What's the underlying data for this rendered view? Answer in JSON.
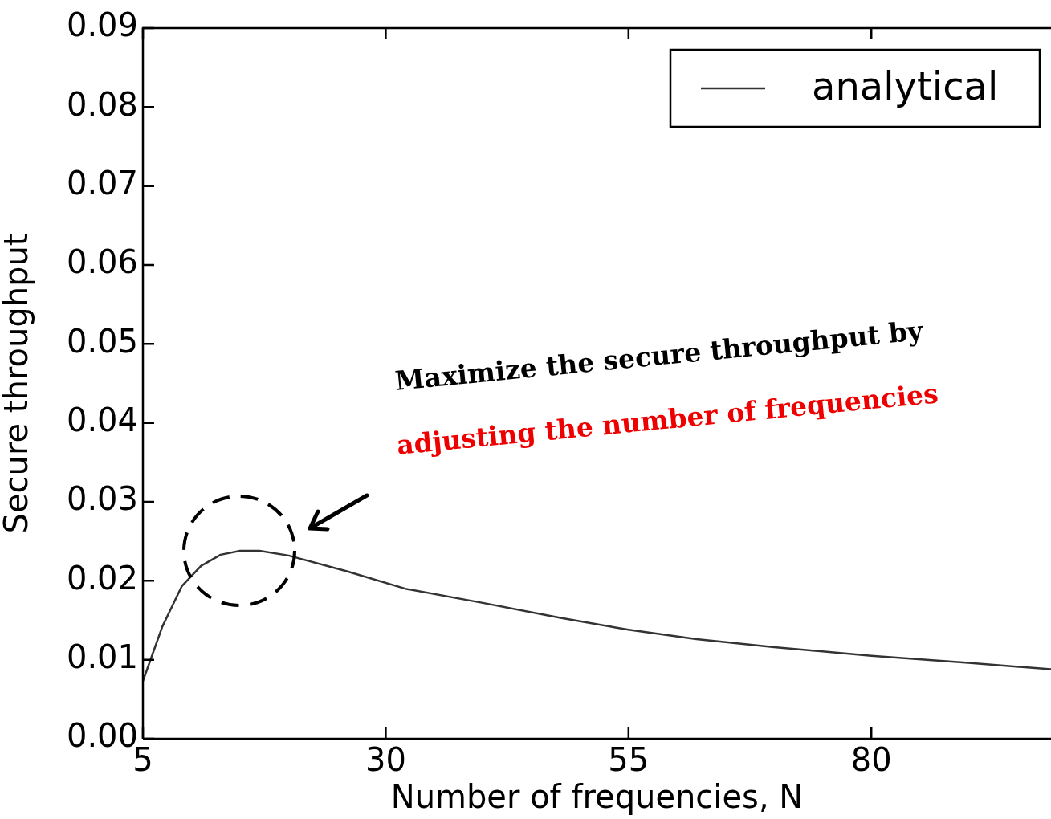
{
  "chart_data": {
    "type": "line",
    "xlabel": "Number of frequencies, N",
    "ylabel": "Secure throughput",
    "x": [
      5,
      7,
      9,
      11,
      13,
      15,
      17,
      20,
      26,
      32,
      40,
      48,
      55,
      62,
      70,
      80,
      90,
      98.5
    ],
    "series": [
      {
        "name": "analytical",
        "color": "#333333",
        "values": [
          0.0073,
          0.0142,
          0.0193,
          0.0219,
          0.0233,
          0.0238,
          0.0238,
          0.0232,
          0.0212,
          0.019,
          0.0172,
          0.0153,
          0.0138,
          0.0126,
          0.0116,
          0.0105,
          0.0096,
          0.0088
        ]
      }
    ],
    "xlim": [
      5,
      98.5
    ],
    "xticks": [
      5,
      30,
      55,
      80
    ],
    "ylim": [
      0,
      0.09
    ],
    "yticks": [
      {
        "value": 0,
        "label": "0.00"
      },
      {
        "value": 0.01,
        "label": "0.01"
      },
      {
        "value": 0.02,
        "label": "0.02"
      },
      {
        "value": 0.03,
        "label": "0.03"
      },
      {
        "value": 0.04,
        "label": "0.04"
      },
      {
        "value": 0.05,
        "label": "0.05"
      },
      {
        "value": 0.06,
        "label": "0.06"
      },
      {
        "value": 0.07,
        "label": "0.07"
      },
      {
        "value": 0.08,
        "label": "0.08"
      },
      {
        "value": 0.09,
        "label": "0.09"
      }
    ],
    "annotations": [
      "Maximize the secure throughput by",
      "adjusting the number of frequencies"
    ],
    "legend": "top right",
    "marker": "none",
    "line_style": "solid",
    "grid": false
  }
}
